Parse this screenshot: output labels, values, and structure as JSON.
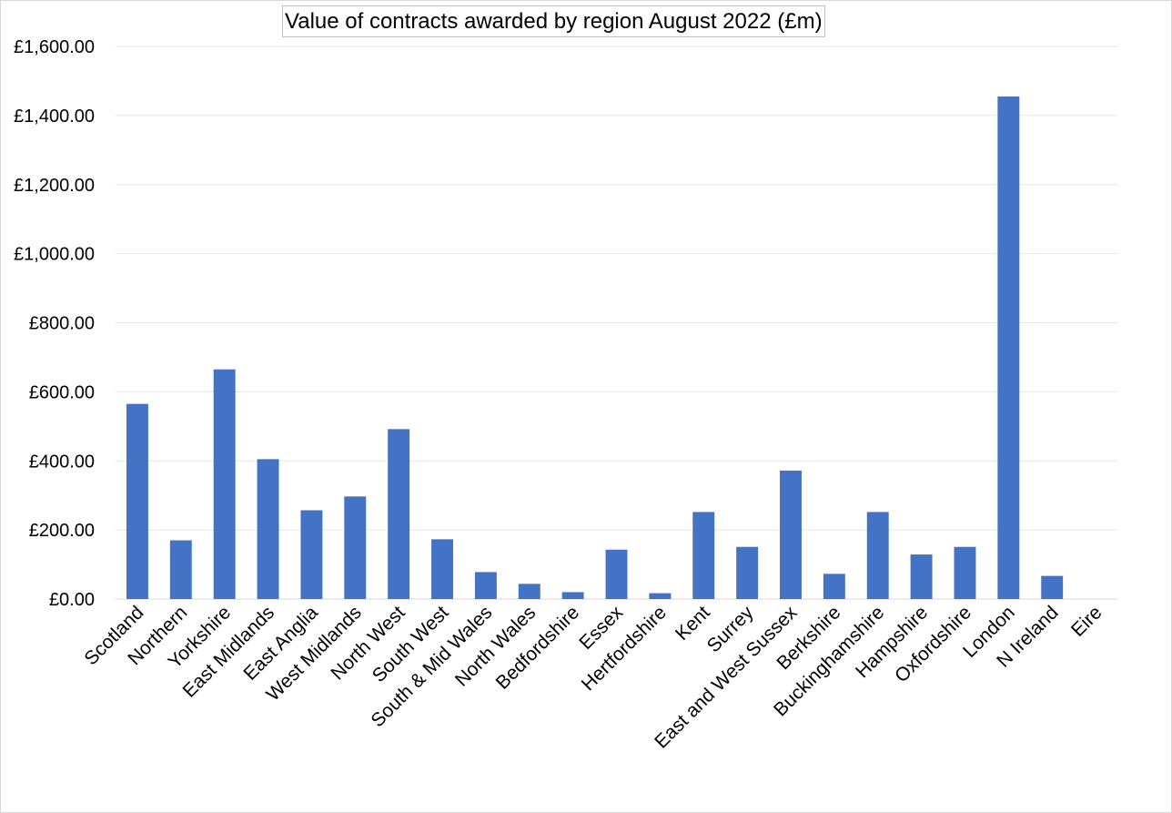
{
  "chart_data": {
    "type": "bar",
    "title": "Value of contracts awarded by region August 2022 (£m)",
    "xlabel": "",
    "ylabel": "",
    "ylim": [
      0,
      1600
    ],
    "ytick_step": 200,
    "ytick_labels": [
      "£0.00",
      "£200.00",
      "£400.00",
      "£600.00",
      "£800.00",
      "£1,000.00",
      "£1,200.00",
      "£1,400.00",
      "£1,600.00"
    ],
    "grid": true,
    "legend": "none",
    "bar_color": "#4472C4",
    "categories": [
      "Scotland",
      "Northern",
      "Yorkshire",
      "East Midlands",
      "East Anglia",
      "West Midlands",
      "North West",
      "South West",
      "South & Mid Wales",
      "North Wales",
      "Bedfordshire",
      "Essex",
      "Hertfordshire",
      "Kent",
      "Surrey",
      "East and West Sussex",
      "Berkshire",
      "Buckinghamshire",
      "Hampshire",
      "Oxfordshire",
      "London",
      "N Ireland",
      "Eire"
    ],
    "values": [
      565,
      170,
      665,
      405,
      257,
      297,
      492,
      173,
      78,
      44,
      20,
      143,
      17,
      252,
      151,
      372,
      73,
      252,
      129,
      151,
      1455,
      67,
      0
    ]
  }
}
